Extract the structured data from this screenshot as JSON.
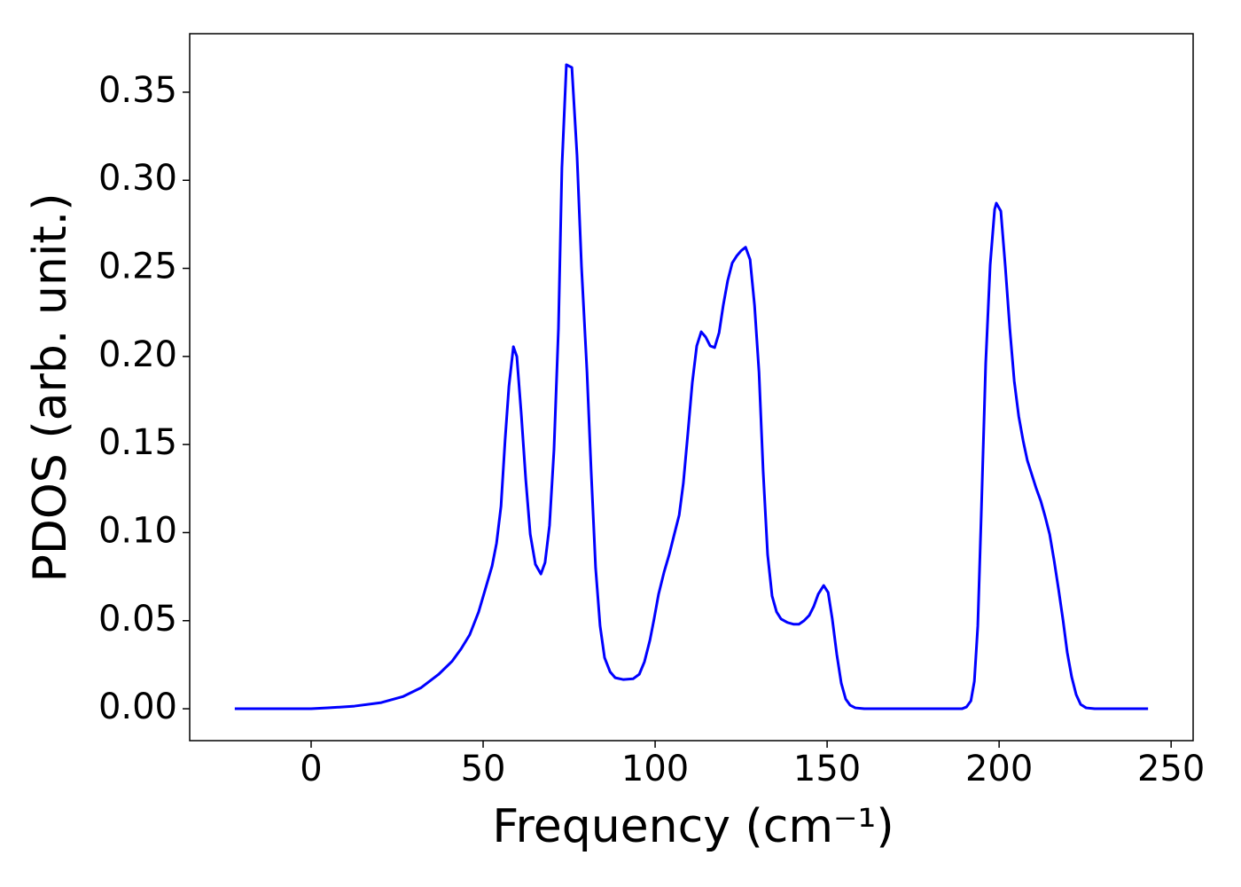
{
  "chart_data": {
    "type": "line",
    "xlabel": "Frequency (cm⁻¹)",
    "ylabel": "PDOS (arb. unit.)",
    "xlim": [
      -35.3,
      256.4
    ],
    "ylim": [
      -0.0181,
      0.3832
    ],
    "xticks": [
      0,
      50,
      100,
      150,
      200,
      250
    ],
    "yticks": [
      {
        "value": 0,
        "label": "0.00"
      },
      {
        "value": 0.05,
        "label": "0.05"
      },
      {
        "value": 0.1,
        "label": "0.10"
      },
      {
        "value": 0.15,
        "label": "0.15"
      },
      {
        "value": 0.2,
        "label": "0.20"
      },
      {
        "value": 0.25,
        "label": "0.25"
      },
      {
        "value": 0.3,
        "label": "0.30"
      },
      {
        "value": 0.35,
        "label": "0.35"
      }
    ],
    "x": [
      -22.2,
      0,
      4.9,
      12.6,
      20.4,
      26.8,
      32,
      37.1,
      41,
      43.6,
      46.1,
      48.7,
      50.8,
      52.6,
      53.9,
      55.2,
      56.4,
      57.5,
      58.8,
      59.8,
      61.1,
      62.4,
      63.7,
      65.2,
      66.8,
      68.0,
      69.3,
      70.6,
      71.9,
      72.9,
      74.2,
      75.8,
      77.3,
      78.6,
      80.2,
      81.4,
      82.7,
      84.0,
      85.3,
      86.9,
      88.4,
      90.7,
      93.6,
      95.4,
      96.9,
      98.5,
      99.7,
      101,
      102.6,
      104.1,
      105.4,
      107,
      108.2,
      109.5,
      110.8,
      112.1,
      113.4,
      114.7,
      116,
      117.3,
      118.6,
      119.8,
      121.1,
      122.4,
      123.7,
      125,
      126.3,
      127.6,
      128.9,
      130.2,
      131.4,
      132.7,
      134,
      135.3,
      136.6,
      138.4,
      140.2,
      141.8,
      143.3,
      144.8,
      146.1,
      147.4,
      149,
      150.3,
      151.5,
      152.8,
      154.1,
      155.4,
      156.7,
      158.2,
      160.8,
      189.2,
      190.5,
      191.8,
      192.8,
      193.8,
      194.8,
      196.1,
      197.4,
      198.7,
      199.2,
      200.5,
      201.8,
      203.1,
      204.4,
      205.7,
      207,
      208.2,
      209.5,
      210.8,
      212.1,
      213.4,
      214.7,
      216,
      217.3,
      218.6,
      219.8,
      221.1,
      222.4,
      223.7,
      225.3,
      227.8,
      243.3
    ],
    "series": [
      {
        "color": "#0000ff",
        "values": [
          0,
          0,
          0.0005,
          0.0015,
          0.0035,
          0.007,
          0.012,
          0.0196,
          0.027,
          0.034,
          0.042,
          0.055,
          0.069,
          0.081,
          0.094,
          0.115,
          0.153,
          0.183,
          0.2055,
          0.2,
          0.167,
          0.13,
          0.099,
          0.082,
          0.0765,
          0.083,
          0.104,
          0.147,
          0.216,
          0.307,
          0.3656,
          0.364,
          0.314,
          0.251,
          0.191,
          0.135,
          0.08,
          0.047,
          0.029,
          0.021,
          0.0176,
          0.0166,
          0.017,
          0.0196,
          0.0267,
          0.039,
          0.051,
          0.065,
          0.0776,
          0.0876,
          0.0977,
          0.11,
          0.128,
          0.156,
          0.185,
          0.206,
          0.214,
          0.211,
          0.206,
          0.205,
          0.2135,
          0.229,
          0.243,
          0.253,
          0.257,
          0.26,
          0.262,
          0.255,
          0.229,
          0.191,
          0.135,
          0.0876,
          0.064,
          0.055,
          0.051,
          0.049,
          0.048,
          0.048,
          0.05,
          0.053,
          0.058,
          0.065,
          0.07,
          0.066,
          0.051,
          0.031,
          0.0146,
          0.0055,
          0.002,
          0.0005,
          0,
          0,
          0.001,
          0.0045,
          0.0156,
          0.047,
          0.11,
          0.196,
          0.252,
          0.2835,
          0.287,
          0.2825,
          0.251,
          0.216,
          0.186,
          0.166,
          0.152,
          0.141,
          0.133,
          0.125,
          0.118,
          0.109,
          0.099,
          0.084,
          0.0675,
          0.05,
          0.032,
          0.018,
          0.008,
          0.0025,
          0.0005,
          0,
          0
        ]
      }
    ]
  }
}
